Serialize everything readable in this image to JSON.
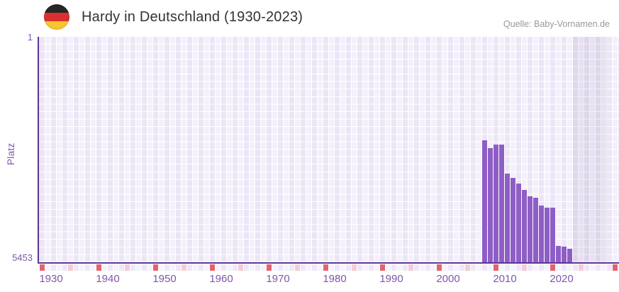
{
  "header": {
    "flag_icon": "german-flag",
    "title": "Hardy in Deutschland (1930-2023)",
    "source": "Quelle: Baby-Vornamen.de"
  },
  "chart_data": {
    "type": "bar",
    "title": "Hardy in Deutschland (1930-2023)",
    "source": "Quelle: Baby-Vornamen.de",
    "ylabel": "Platz",
    "xlabel": "",
    "y_axis": {
      "top_label": "1",
      "bottom_label": "5453",
      "min": 1,
      "max": 5453,
      "inverted": true
    },
    "x_axis": {
      "first_year": 1930,
      "last_year": 2031,
      "tick_years": [
        1930,
        1940,
        1950,
        1960,
        1970,
        1980,
        1990,
        2000,
        2010,
        2020
      ],
      "strip_red_years": [
        1930,
        1940,
        1950,
        1960,
        1970,
        1980,
        1990,
        2000,
        2010,
        2020,
        2031
      ],
      "strip_pink_years": [
        1935,
        1945,
        1955,
        1965,
        1975,
        1985,
        1995,
        2005,
        2015,
        2025
      ],
      "no_data_band": {
        "from_year": 2024,
        "to_year": 2030
      }
    },
    "series": [
      {
        "name": "Platz",
        "points": [
          {
            "year": 2008,
            "rank": 2495
          },
          {
            "year": 2009,
            "rank": 2685
          },
          {
            "year": 2010,
            "rank": 2605
          },
          {
            "year": 2011,
            "rank": 2605
          },
          {
            "year": 2012,
            "rank": 3305
          },
          {
            "year": 2013,
            "rank": 3420
          },
          {
            "year": 2014,
            "rank": 3555
          },
          {
            "year": 2015,
            "rank": 3695
          },
          {
            "year": 2016,
            "rank": 3865
          },
          {
            "year": 2017,
            "rank": 3890
          },
          {
            "year": 2018,
            "rank": 4075
          },
          {
            "year": 2019,
            "rank": 4140
          },
          {
            "year": 2020,
            "rank": 4125
          },
          {
            "year": 2021,
            "rank": 5055
          },
          {
            "year": 2022,
            "rank": 5075
          },
          {
            "year": 2023,
            "rank": 5125
          }
        ]
      }
    ],
    "legend": "none",
    "grid": true,
    "colors": {
      "bar": "#8e5ec6",
      "axis_line": "#5a3697",
      "tick_label": "#7e58aa",
      "grid_cell_light": "#f4f0fb",
      "grid_cell_dark": "#ebe5f5",
      "strip_red": "#e2636f",
      "strip_pink": "#f3cdd5",
      "strip_cell_a": "#ede7f7",
      "strip_cell_b": "#f6f3fc",
      "title": "#333333",
      "source": "#999999"
    }
  }
}
